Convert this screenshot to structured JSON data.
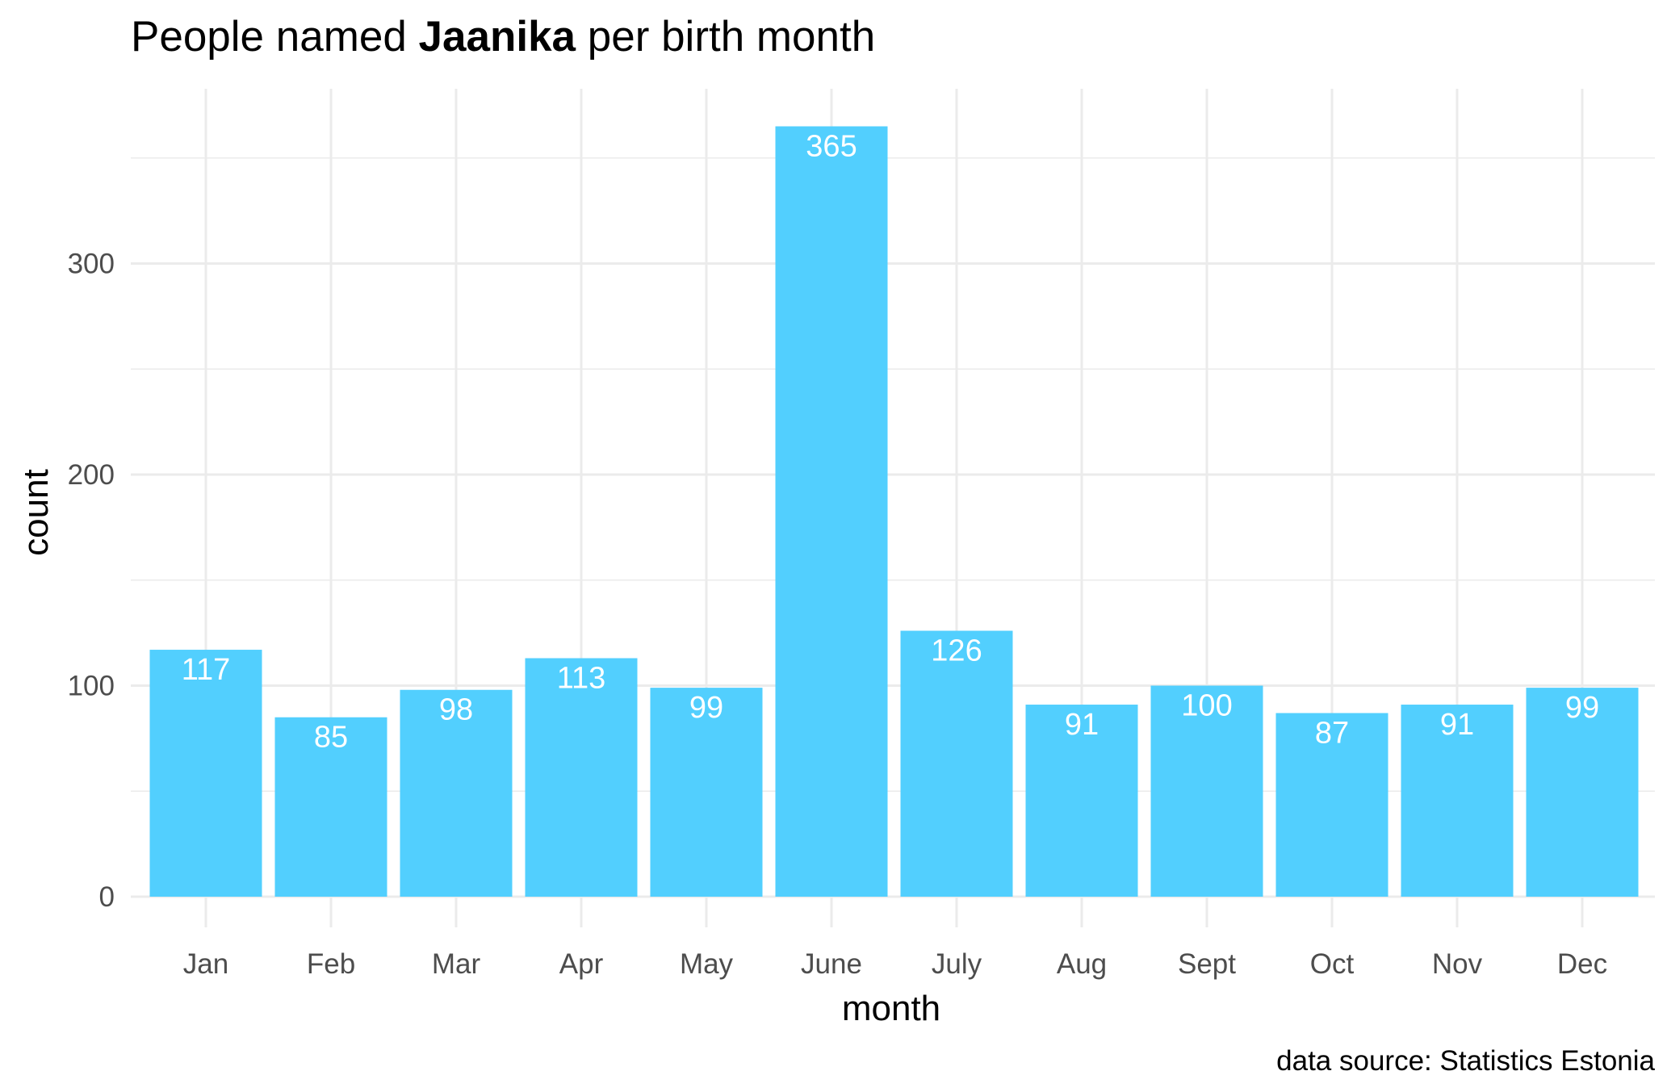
{
  "colors": {
    "bar": "#52cffe",
    "grid": "#ebebeb",
    "bar_label": "#ffffff",
    "tick_label": "#4d4d4d",
    "text": "#000000",
    "background": "#ffffff"
  },
  "chart_data": {
    "type": "bar",
    "title_prefix": "People named ",
    "title_name": "Jaanika",
    "title_suffix": " per birth month",
    "xlabel": "month",
    "ylabel": "count",
    "caption": "data source: Statistics Estonia",
    "categories": [
      "Jan",
      "Feb",
      "Mar",
      "Apr",
      "May",
      "June",
      "July",
      "Aug",
      "Sept",
      "Oct",
      "Nov",
      "Dec"
    ],
    "values": [
      117,
      85,
      98,
      113,
      99,
      365,
      126,
      91,
      100,
      87,
      91,
      99
    ],
    "data_labels": [
      "117",
      "85",
      "98",
      "113",
      "99",
      "365",
      "126",
      "91",
      "100",
      "87",
      "91",
      "99"
    ],
    "yticks": [
      0,
      100,
      200,
      300
    ],
    "ytick_labels": [
      "0",
      "100",
      "200",
      "300"
    ],
    "yminor": [
      50,
      150,
      250,
      350
    ],
    "ylim": [
      0,
      383
    ],
    "grid": true,
    "legend": "none"
  }
}
